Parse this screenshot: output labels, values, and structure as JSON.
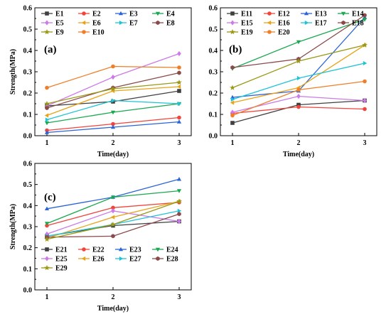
{
  "chart_data": [
    {
      "type": "line",
      "panel_label": "(a)",
      "xlabel": "Time(day)",
      "ylabel": "Strength(MPa)",
      "x": [
        1,
        2,
        3
      ],
      "xticks": [
        "1",
        "2",
        "3"
      ],
      "ylim": [
        0,
        0.6
      ],
      "yticks": [
        "0.0",
        "0.1",
        "0.2",
        "0.3",
        "0.4",
        "0.5",
        "0.6"
      ],
      "legend_position": "top",
      "series": [
        {
          "name": "E1",
          "color": "#404040",
          "marker": "square",
          "values": [
            0.14,
            0.16,
            0.21
          ]
        },
        {
          "name": "E2",
          "color": "#f0443c",
          "marker": "circle",
          "values": [
            0.025,
            0.055,
            0.085
          ]
        },
        {
          "name": "E3",
          "color": "#2b64d8",
          "marker": "triangle-up",
          "values": [
            0.015,
            0.04,
            0.065
          ]
        },
        {
          "name": "E4",
          "color": "#1aa850",
          "marker": "triangle-down",
          "values": [
            0.06,
            0.11,
            0.15
          ]
        },
        {
          "name": "E5",
          "color": "#cc7ae8",
          "marker": "diamond",
          "values": [
            0.14,
            0.275,
            0.385
          ]
        },
        {
          "name": "E6",
          "color": "#e8a317",
          "marker": "triangle-left",
          "values": [
            0.095,
            0.21,
            0.23
          ]
        },
        {
          "name": "E7",
          "color": "#1fc3d6",
          "marker": "triangle-right",
          "values": [
            0.075,
            0.165,
            0.15
          ]
        },
        {
          "name": "E8",
          "color": "#8b4a4a",
          "marker": "hexagon",
          "values": [
            0.13,
            0.225,
            0.295
          ]
        },
        {
          "name": "E9",
          "color": "#999915",
          "marker": "star",
          "values": [
            0.15,
            0.22,
            0.25
          ]
        },
        {
          "name": "E10",
          "color": "#f07e26",
          "marker": "circle",
          "values": [
            0.225,
            0.325,
            0.32
          ]
        }
      ]
    },
    {
      "type": "line",
      "panel_label": "(b)",
      "xlabel": "Time(day)",
      "ylabel": "",
      "x": [
        1,
        2,
        3
      ],
      "xticks": [
        "1",
        "2",
        "3"
      ],
      "ylim": [
        0,
        0.6
      ],
      "yticks": [
        "0.0",
        "0.1",
        "0.2",
        "0.3",
        "0.4",
        "0.5",
        "0.6"
      ],
      "legend_position": "top",
      "series": [
        {
          "name": "E11",
          "color": "#404040",
          "marker": "square",
          "values": [
            0.06,
            0.145,
            0.165
          ]
        },
        {
          "name": "E12",
          "color": "#f0443c",
          "marker": "circle",
          "values": [
            0.105,
            0.135,
            0.125
          ]
        },
        {
          "name": "E13",
          "color": "#2b64d8",
          "marker": "triangle-up",
          "values": [
            0.18,
            0.21,
            0.555
          ]
        },
        {
          "name": "E14",
          "color": "#1aa850",
          "marker": "triangle-down",
          "values": [
            0.315,
            0.44,
            0.545
          ]
        },
        {
          "name": "E15",
          "color": "#cc7ae8",
          "marker": "diamond",
          "values": [
            0.11,
            0.185,
            0.165
          ]
        },
        {
          "name": "E16",
          "color": "#e8a317",
          "marker": "triangle-left",
          "values": [
            0.155,
            0.225,
            0.425
          ]
        },
        {
          "name": "E17",
          "color": "#1fc3d6",
          "marker": "triangle-right",
          "values": [
            0.17,
            0.27,
            0.34
          ]
        },
        {
          "name": "E18",
          "color": "#8b4a4a",
          "marker": "hexagon",
          "values": [
            0.32,
            0.36,
            0.565
          ]
        },
        {
          "name": "E19",
          "color": "#999915",
          "marker": "star",
          "values": [
            0.225,
            0.35,
            0.425
          ]
        },
        {
          "name": "E20",
          "color": "#f07e26",
          "marker": "circle",
          "values": [
            0.095,
            0.215,
            0.255
          ]
        }
      ]
    },
    {
      "type": "line",
      "panel_label": "(c)",
      "xlabel": "Time(day)",
      "ylabel": "Strength(MPa)",
      "x": [
        1,
        2,
        3
      ],
      "xticks": [
        "1",
        "2",
        "3"
      ],
      "ylim": [
        0,
        0.6
      ],
      "yticks": [
        "0.0",
        "0.1",
        "0.2",
        "0.3",
        "0.4",
        "0.5",
        "0.6"
      ],
      "legend_position": "bottom",
      "series": [
        {
          "name": "E21",
          "color": "#404040",
          "marker": "square",
          "values": [
            0.255,
            0.305,
            0.325
          ]
        },
        {
          "name": "E22",
          "color": "#f0443c",
          "marker": "circle",
          "values": [
            0.305,
            0.39,
            0.415
          ]
        },
        {
          "name": "E23",
          "color": "#2b64d8",
          "marker": "triangle-up",
          "values": [
            0.385,
            0.44,
            0.525
          ]
        },
        {
          "name": "E24",
          "color": "#1aa850",
          "marker": "triangle-down",
          "values": [
            0.315,
            0.44,
            0.47
          ]
        },
        {
          "name": "E25",
          "color": "#cc7ae8",
          "marker": "diamond",
          "values": [
            0.265,
            0.375,
            0.325
          ]
        },
        {
          "name": "E26",
          "color": "#e8a317",
          "marker": "triangle-left",
          "values": [
            0.245,
            0.345,
            0.42
          ]
        },
        {
          "name": "E27",
          "color": "#1fc3d6",
          "marker": "triangle-right",
          "values": [
            0.255,
            0.31,
            0.375
          ]
        },
        {
          "name": "E28",
          "color": "#8b4a4a",
          "marker": "hexagon",
          "values": [
            0.25,
            0.255,
            0.36
          ]
        },
        {
          "name": "E29",
          "color": "#999915",
          "marker": "star",
          "values": [
            0.24,
            0.31,
            0.42
          ]
        }
      ]
    }
  ]
}
